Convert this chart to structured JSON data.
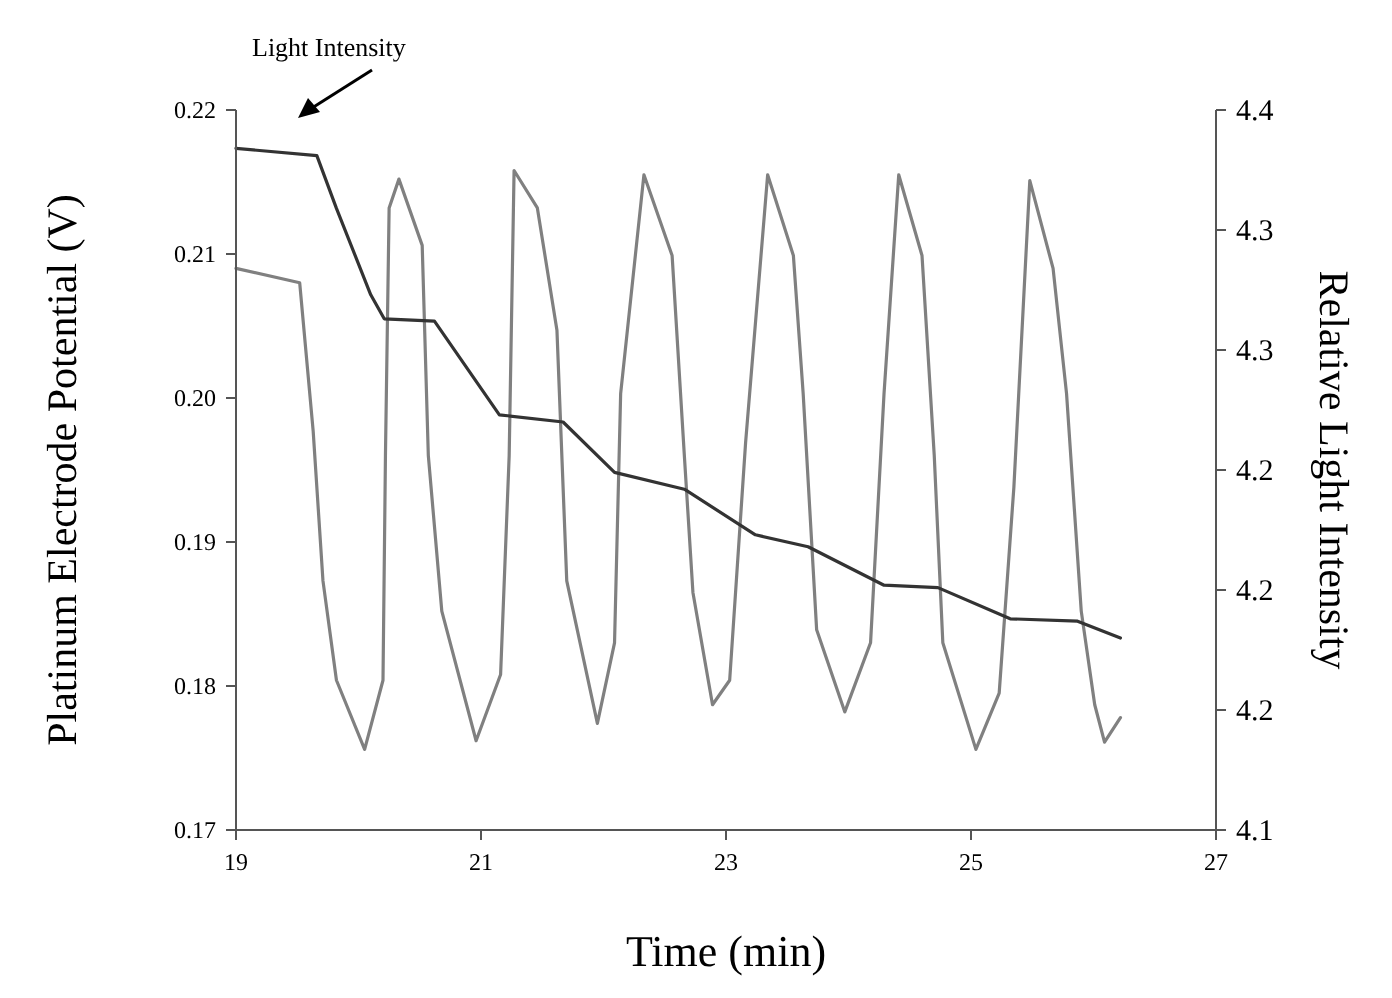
{
  "chart_data": {
    "type": "line",
    "xlabel": "Time (min)",
    "ylabel": "Platinum Electrode Potential (V)",
    "y2label": "Relative Light Intensity",
    "annotations": [
      "Light Intensity"
    ],
    "xlim": [
      19,
      27
    ],
    "xticks": [
      19,
      21,
      23,
      25,
      27
    ],
    "ylim": [
      0.17,
      0.22
    ],
    "yticks": [
      {
        "value": 0.17,
        "label": "0.17"
      },
      {
        "value": 0.18,
        "label": "0.18"
      },
      {
        "value": 0.19,
        "label": "0.19"
      },
      {
        "value": 0.2,
        "label": "0.20"
      },
      {
        "value": 0.21,
        "label": "0.21"
      },
      {
        "value": 0.22,
        "label": "0.22"
      }
    ],
    "y2lim": [
      4.1,
      4.4
    ],
    "y2ticks": [
      {
        "value": 4.1,
        "label": "4.1"
      },
      {
        "value": 4.15,
        "label": "4.2"
      },
      {
        "value": 4.2,
        "label": "4.2"
      },
      {
        "value": 4.25,
        "label": "4.2"
      },
      {
        "value": 4.3,
        "label": "4.3"
      },
      {
        "value": 4.35,
        "label": "4.3"
      },
      {
        "value": 4.4,
        "label": "4.4"
      }
    ],
    "grid": false,
    "marker": "none",
    "line_style": "solid",
    "series": [
      {
        "color": "#808080",
        "x": [
          19.0,
          19.52,
          19.63,
          19.71,
          19.82,
          20.05,
          20.2,
          20.22,
          20.25,
          20.33,
          20.52,
          20.57,
          20.68,
          20.96,
          21.16,
          21.23,
          21.27,
          21.46,
          21.62,
          21.7,
          21.95,
          22.09,
          22.14,
          22.33,
          22.56,
          22.66,
          22.73,
          22.89,
          23.03,
          23.16,
          23.34,
          23.55,
          23.63,
          23.74,
          23.97,
          24.18,
          24.29,
          24.41,
          24.6,
          24.7,
          24.77,
          25.04,
          25.23,
          25.35,
          25.48,
          25.67,
          25.78,
          25.9,
          26.01,
          26.09,
          26.22
        ],
        "values": [
          0.209,
          0.208,
          0.1977,
          0.1873,
          0.1804,
          0.1756,
          0.1804,
          0.196,
          0.2132,
          0.2152,
          0.2106,
          0.196,
          0.1852,
          0.1762,
          0.1808,
          0.196,
          0.2158,
          0.2132,
          0.2047,
          0.1873,
          0.1774,
          0.183,
          0.2003,
          0.2155,
          0.2099,
          0.196,
          0.1865,
          0.1787,
          0.1804,
          0.1969,
          0.2155,
          0.2099,
          0.2003,
          0.1839,
          0.1782,
          0.183,
          0.2003,
          0.2155,
          0.2099,
          0.196,
          0.183,
          0.1756,
          0.1795,
          0.1938,
          0.2151,
          0.209,
          0.2003,
          0.1852,
          0.1787,
          0.1761,
          0.1778
        ]
      },
      {
        "color": "#333333",
        "axis": "y2",
        "x": [
          19.0,
          19.66,
          19.82,
          20.1,
          20.21,
          20.62,
          21.15,
          21.67,
          22.09,
          22.66,
          23.24,
          23.67,
          24.29,
          24.73,
          25.32,
          25.87,
          26.22
        ],
        "values": [
          4.384,
          4.381,
          4.359,
          4.323,
          4.313,
          4.312,
          4.273,
          4.27,
          4.249,
          4.242,
          4.223,
          4.218,
          4.202,
          4.201,
          4.188,
          4.187,
          4.18
        ]
      }
    ]
  }
}
